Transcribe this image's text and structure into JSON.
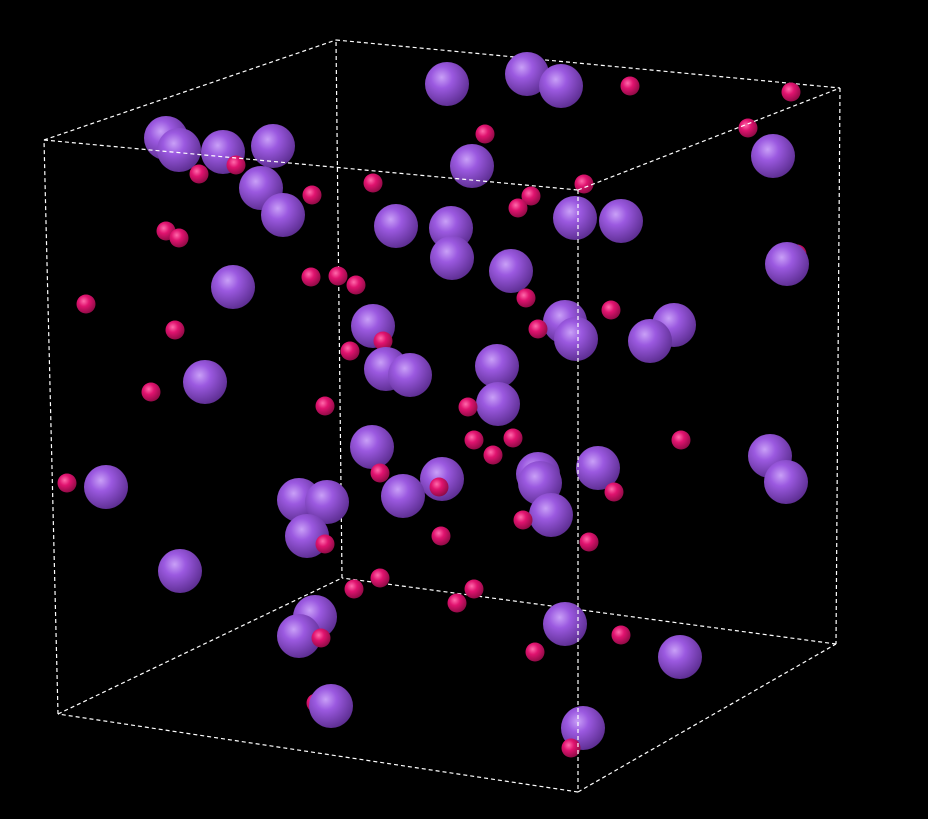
{
  "scene": {
    "background_color": "#000000",
    "box_edge_color": "#ffffff",
    "box_edge_style": "dashed",
    "species": [
      {
        "element": "large-atom",
        "color": "#9b59e0",
        "highlight": "#c79af5",
        "shade": "#5a2c8e",
        "count": 51
      },
      {
        "element": "small-atom",
        "color": "#e0136f",
        "highlight": "#ff63a6",
        "shade": "#8a0a43",
        "count": 63
      }
    ]
  }
}
